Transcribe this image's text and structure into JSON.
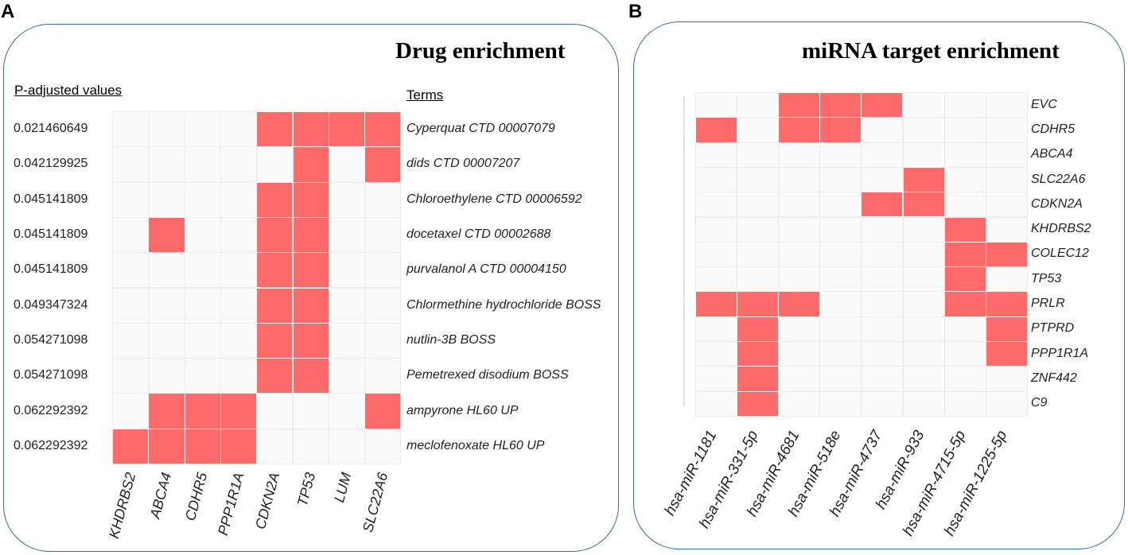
{
  "panels": {
    "a_letter": "A",
    "b_letter": "B"
  },
  "colors": {
    "hit": "#fc6a6a",
    "empty": "#fafafa",
    "border": "#3a6a95"
  },
  "chart_data": [
    {
      "type": "heatmap",
      "title": "Drug enrichment",
      "left_header": "P-adjusted values",
      "right_header": "Terms",
      "columns": [
        "KHDRBS2",
        "ABCA4",
        "CDHR5",
        "PPP1R1A",
        "CDKN2A",
        "TP53",
        "LUM",
        "SLC22A6"
      ],
      "rows": [
        {
          "pval": "0.021460649",
          "term": "Cyperquat CTD 00007079",
          "hits": [
            0,
            0,
            0,
            0,
            1,
            1,
            1,
            1
          ]
        },
        {
          "pval": "0.042129925",
          "term": "dids CTD 00007207",
          "hits": [
            0,
            0,
            0,
            0,
            0,
            1,
            0,
            1
          ]
        },
        {
          "pval": "0.045141809",
          "term": "Chloroethylene CTD 00006592",
          "hits": [
            0,
            0,
            0,
            0,
            1,
            1,
            0,
            0
          ]
        },
        {
          "pval": "0.045141809",
          "term": "docetaxel CTD 00002688",
          "hits": [
            0,
            1,
            0,
            0,
            1,
            1,
            0,
            0
          ]
        },
        {
          "pval": "0.045141809",
          "term": "purvalanol A CTD 00004150",
          "hits": [
            0,
            0,
            0,
            0,
            1,
            1,
            0,
            0
          ]
        },
        {
          "pval": "0.049347324",
          "term": "Chlormethine hydrochloride BOSS",
          "hits": [
            0,
            0,
            0,
            0,
            1,
            1,
            0,
            0
          ]
        },
        {
          "pval": "0.054271098",
          "term": "nutlin-3B BOSS",
          "hits": [
            0,
            0,
            0,
            0,
            1,
            1,
            0,
            0
          ]
        },
        {
          "pval": "0.054271098",
          "term": "Pemetrexed disodium BOSS",
          "hits": [
            0,
            0,
            0,
            0,
            1,
            1,
            0,
            0
          ]
        },
        {
          "pval": "0.062292392",
          "term": "ampyrone HL60 UP",
          "hits": [
            0,
            1,
            1,
            1,
            0,
            0,
            0,
            1
          ]
        },
        {
          "pval": "0.062292392",
          "term": "meclofenoxate HL60 UP",
          "hits": [
            1,
            1,
            1,
            1,
            0,
            0,
            0,
            0
          ]
        }
      ]
    },
    {
      "type": "heatmap",
      "title": "miRNA target enrichment",
      "columns": [
        "hsa-miR-1181",
        "hsa-miR-331-5p",
        "hsa-miR-4681",
        "hsa-miR-518e",
        "hsa-miR-4737",
        "hsa-miR-933",
        "hsa-miR-4715-5p",
        "hsa-miR-1225-5p"
      ],
      "rows": [
        {
          "gene": "EVC",
          "hits": [
            0,
            0,
            1,
            1,
            1,
            0,
            0,
            0
          ]
        },
        {
          "gene": "CDHR5",
          "hits": [
            1,
            0,
            1,
            1,
            0,
            0,
            0,
            0
          ]
        },
        {
          "gene": "ABCA4",
          "hits": [
            0,
            0,
            0,
            0,
            0,
            0,
            0,
            0
          ]
        },
        {
          "gene": "SLC22A6",
          "hits": [
            0,
            0,
            0,
            0,
            0,
            1,
            0,
            0
          ]
        },
        {
          "gene": "CDKN2A",
          "hits": [
            0,
            0,
            0,
            0,
            1,
            1,
            0,
            0
          ]
        },
        {
          "gene": "KHDRBS2",
          "hits": [
            0,
            0,
            0,
            0,
            0,
            0,
            1,
            0
          ]
        },
        {
          "gene": "COLEC12",
          "hits": [
            0,
            0,
            0,
            0,
            0,
            0,
            1,
            1
          ]
        },
        {
          "gene": "TP53",
          "hits": [
            0,
            0,
            0,
            0,
            0,
            0,
            1,
            0
          ]
        },
        {
          "gene": "PRLR",
          "hits": [
            1,
            1,
            1,
            0,
            0,
            0,
            1,
            1
          ]
        },
        {
          "gene": "PTPRD",
          "hits": [
            0,
            1,
            0,
            0,
            0,
            0,
            0,
            1
          ]
        },
        {
          "gene": "PPP1R1A",
          "hits": [
            0,
            1,
            0,
            0,
            0,
            0,
            0,
            1
          ]
        },
        {
          "gene": "ZNF442",
          "hits": [
            0,
            1,
            0,
            0,
            0,
            0,
            0,
            0
          ]
        },
        {
          "gene": "C9",
          "hits": [
            0,
            1,
            0,
            0,
            0,
            0,
            0,
            0
          ]
        }
      ]
    }
  ]
}
